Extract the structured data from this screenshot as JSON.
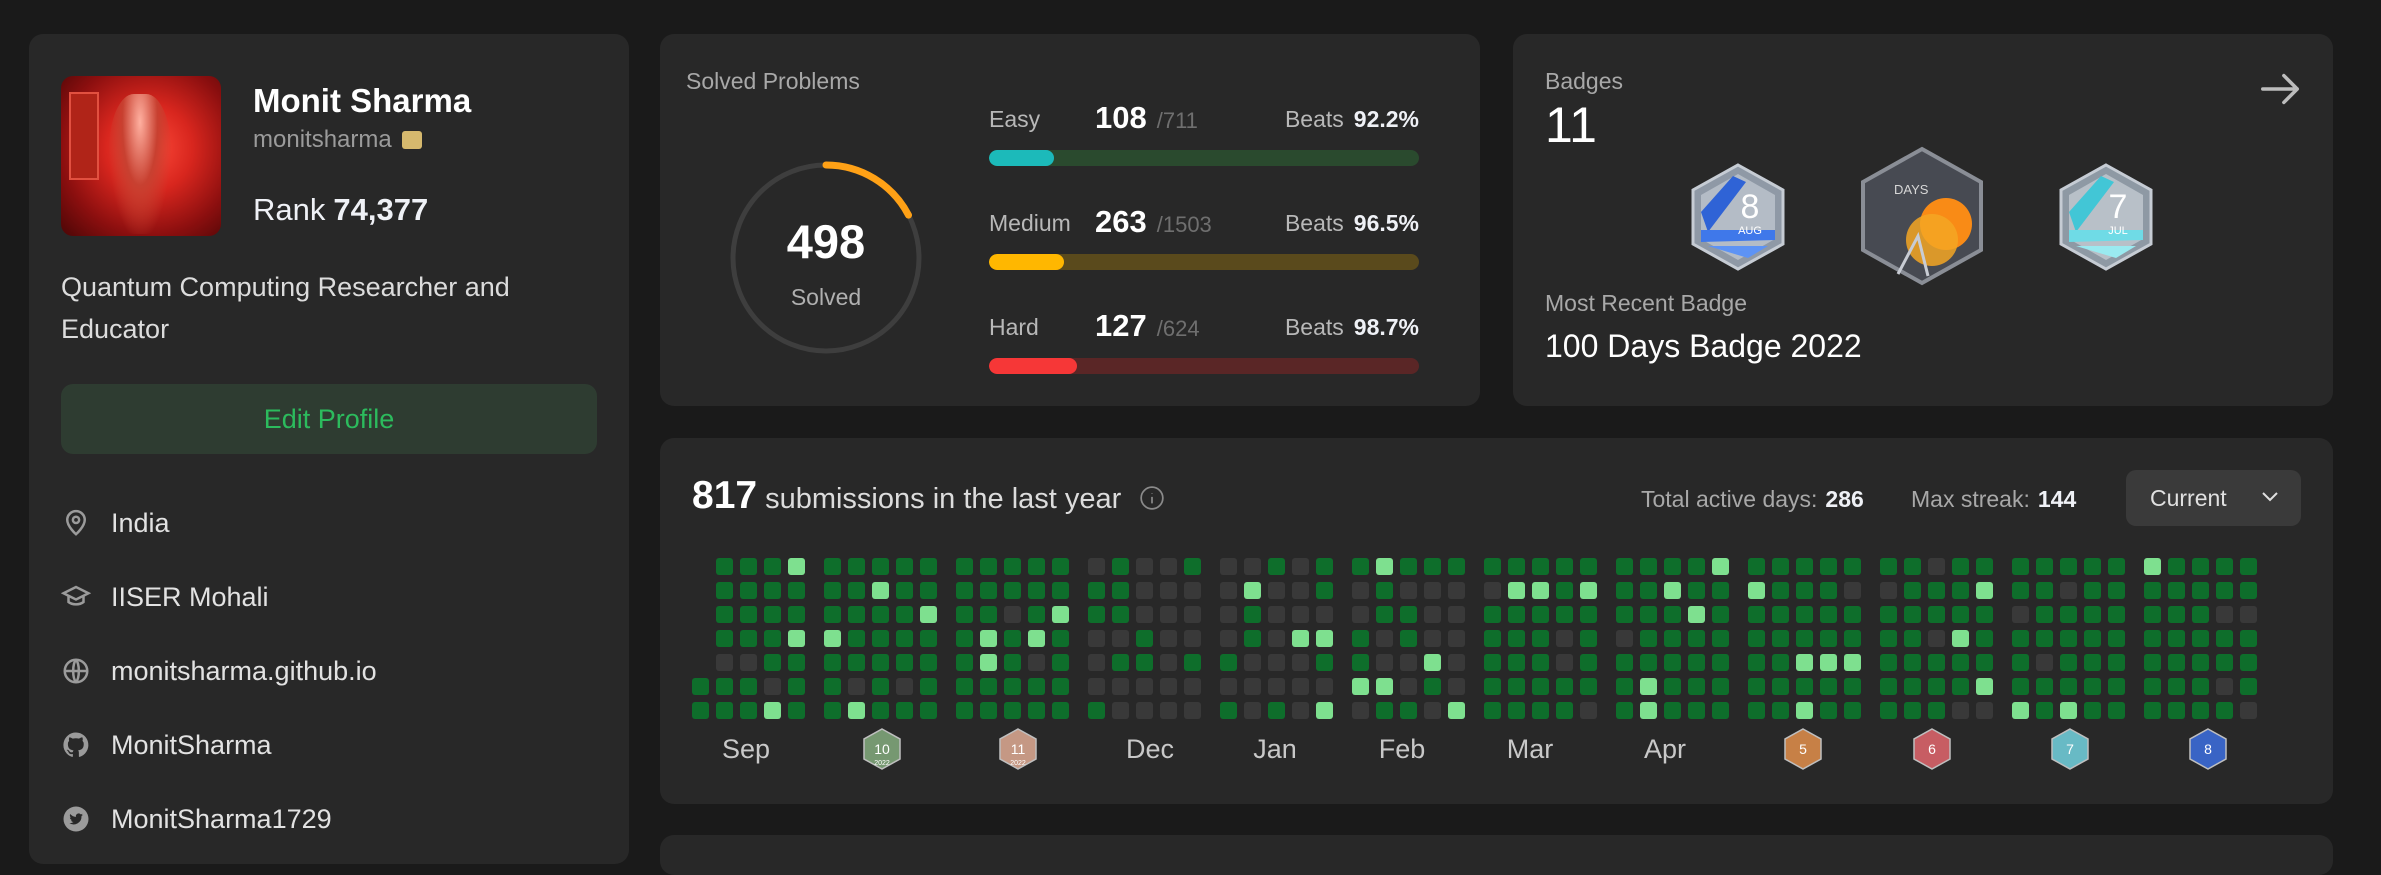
{
  "profile": {
    "name": "Monit Sharma",
    "username": "monitsharma",
    "rank_label": "Rank",
    "rank_value": "74,377",
    "bio": "Quantum Computing Researcher and Educator",
    "edit_button": "Edit Profile",
    "location": "India",
    "school": "IISER Mohali",
    "website": "monitsharma.github.io",
    "github": "MonitSharma",
    "twitter": "MonitSharma1729"
  },
  "solved": {
    "title": "Solved Problems",
    "total": "498",
    "total_label": "Solved",
    "total_fraction": 0.1736,
    "beats_label": "Beats",
    "difficulties": [
      {
        "label": "Easy",
        "count": "108",
        "total": "/711",
        "beats": "92.2%",
        "fraction": 0.152,
        "color": "#1cbaba",
        "track": "#2a4a2e"
      },
      {
        "label": "Medium",
        "count": "263",
        "total": "/1503",
        "beats": "96.5%",
        "fraction": 0.175,
        "color": "#ffb700",
        "track": "#5a4a1c"
      },
      {
        "label": "Hard",
        "count": "127",
        "total": "/624",
        "beats": "98.7%",
        "fraction": 0.204,
        "color": "#f63737",
        "track": "#5a2626"
      }
    ]
  },
  "badges": {
    "title": "Badges",
    "count": "11",
    "recent_label": "Most Recent Badge",
    "recent_name": "100 Days Badge 2022",
    "items": [
      {
        "icon": "august-badge-icon",
        "text": "8",
        "sub": "AUG"
      },
      {
        "icon": "100-days-badge-icon",
        "text": "DAYS",
        "sub": ""
      },
      {
        "icon": "july-badge-icon",
        "text": "7",
        "sub": "JUL"
      }
    ]
  },
  "submissions": {
    "count": "817",
    "label": "submissions in the last year",
    "active_label": "Total active days:",
    "active_value": "286",
    "streak_label": "Max streak:",
    "streak_value": "144",
    "dropdown": "Current",
    "months": [
      {
        "type": "text",
        "label": "Sep"
      },
      {
        "type": "badge",
        "text": "10",
        "sub": "2022",
        "color": "#7fa57a"
      },
      {
        "type": "badge",
        "text": "11",
        "sub": "2022",
        "color": "#d6a58e"
      },
      {
        "type": "text",
        "label": "Dec"
      },
      {
        "type": "text",
        "label": "Jan"
      },
      {
        "type": "text",
        "label": "Feb"
      },
      {
        "type": "text",
        "label": "Mar"
      },
      {
        "type": "text",
        "label": "Apr"
      },
      {
        "type": "badge",
        "text": "5",
        "sub": "",
        "color": "#d98a4a"
      },
      {
        "type": "badge",
        "text": "6",
        "sub": "",
        "color": "#d9636a"
      },
      {
        "type": "badge",
        "text": "7",
        "sub": "",
        "color": "#6fcad6"
      },
      {
        "type": "badge",
        "text": "8",
        "sub": "",
        "color": "#3b6bd6"
      }
    ]
  }
}
